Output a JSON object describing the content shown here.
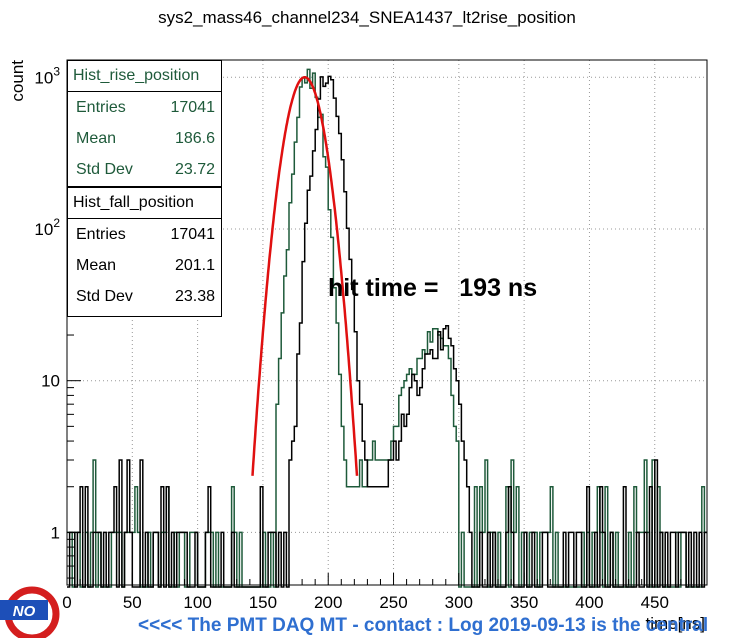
{
  "title": "sys2_mass46_channel234_SNEA1437_lt2rise_position",
  "chart_data": {
    "type": "histogram",
    "title": "sys2_mass46_channel234_SNEA1437_lt2rise_position",
    "xlabel": "time[ns]",
    "ylabel": "count",
    "xlim": [
      0,
      490
    ],
    "ylim": [
      0.45,
      1300
    ],
    "yscale": "log",
    "grid": true,
    "x_ticks": [
      0,
      50,
      100,
      150,
      200,
      250,
      300,
      350,
      400,
      450
    ],
    "y_ticks": [
      {
        "value": 1,
        "label": "1"
      },
      {
        "value": 10,
        "label": "10"
      },
      {
        "value": 100,
        "label": "10",
        "sup": "2"
      },
      {
        "value": 1000,
        "label": "10",
        "sup": "3"
      }
    ],
    "series": [
      {
        "name": "Hist_rise_position",
        "color": "#1e5a3a",
        "peak_x": [
          160,
          165,
          170,
          175,
          180,
          185,
          190,
          195,
          200,
          205,
          210,
          215,
          250,
          255,
          260,
          265,
          270,
          275,
          280,
          285,
          290,
          295,
          300
        ],
        "peak_y": [
          6,
          25,
          110,
          380,
          850,
          1000,
          900,
          520,
          190,
          45,
          8,
          2,
          4,
          7,
          10,
          12,
          14,
          17,
          20,
          25,
          19,
          10,
          3
        ]
      },
      {
        "name": "Hist_fall_position",
        "color": "#000000",
        "peak_x": [
          170,
          175,
          180,
          185,
          190,
          195,
          200,
          205,
          210,
          215,
          220,
          225,
          230,
          245,
          250,
          255,
          260,
          265,
          270,
          275,
          280,
          285,
          290,
          295,
          300,
          305,
          310
        ],
        "peak_y": [
          2,
          6,
          40,
          160,
          480,
          880,
          950,
          720,
          320,
          110,
          30,
          7,
          2,
          2,
          3,
          5,
          7,
          9,
          11,
          13,
          15,
          18,
          22,
          15,
          8,
          3,
          1
        ]
      },
      {
        "name": "fit",
        "color": "#e01010",
        "type": "gaussian",
        "mean": 182,
        "sigma": 11.5,
        "amplitude": 1000
      }
    ],
    "stats": [
      {
        "name": "Hist_rise_position",
        "entries": "17041",
        "mean": "186.6",
        "std_dev": "23.72"
      },
      {
        "name": "Hist_fall_position",
        "entries": "17041",
        "mean": "201.1",
        "std_dev": "23.38"
      }
    ],
    "stat_labels": {
      "entries": "Entries",
      "mean": "Mean",
      "std_dev": "Std Dev"
    },
    "annotation": "hit time =   193 ns"
  },
  "logo": {
    "text": "NO"
  },
  "footer": "<<<< The PMT DAQ MT - contact : Log 2019-09-13 is the central"
}
